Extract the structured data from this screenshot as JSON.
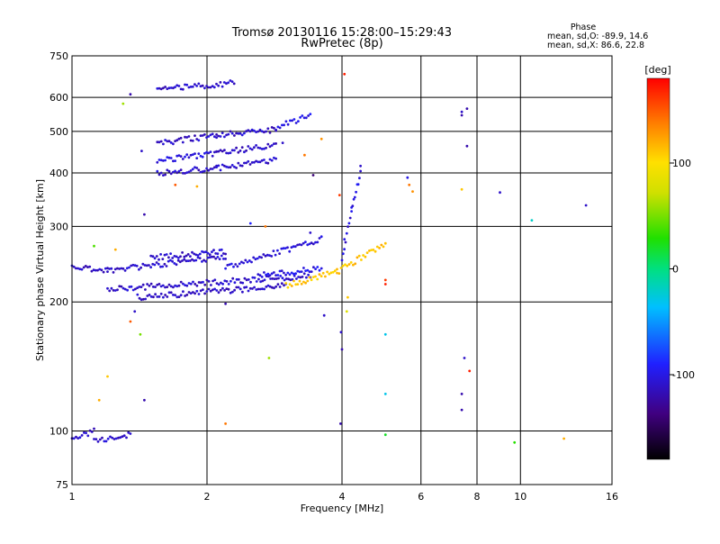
{
  "chart_data": {
    "type": "scatter",
    "title": "Tromsø 20130116 15:28:00–15:29:43",
    "subtitle": "RwPretec (8p)",
    "xlabel": "Frequency [MHz]",
    "ylabel": "Stationary phase Virtual Height [km]",
    "x_scale": "log",
    "y_scale": "log",
    "xlim": [
      1,
      16
    ],
    "ylim": [
      75,
      750
    ],
    "x_ticks": [
      1,
      2,
      4,
      6,
      8,
      10,
      16
    ],
    "y_ticks": [
      75,
      100,
      200,
      300,
      400,
      500,
      600,
      750
    ],
    "grid": true,
    "colorbar": {
      "label": "[deg]",
      "range": [
        -180,
        180
      ],
      "ticks": [
        100,
        0,
        -100
      ],
      "palette": [
        "#000000",
        "#400080",
        "#2020ff",
        "#00c0ff",
        "#00e080",
        "#20e000",
        "#d0e000",
        "#ffe000",
        "#ff8000",
        "#ff0000"
      ]
    },
    "phase_info": {
      "title": "Phase",
      "line1": "mean, sd,O: -89.9, 14.6",
      "line2": "mean, sd,X: 86.6, 22.8"
    },
    "traces": [
      {
        "x0": 1.55,
        "x1": 2.3,
        "y0": 628,
        "y1": 648,
        "phase": -110
      },
      {
        "x0": 1.55,
        "x1": 2.1,
        "y0": 468,
        "y1": 490,
        "phase": -110
      },
      {
        "x0": 1.55,
        "x1": 2.1,
        "y0": 428,
        "y1": 445,
        "phase": -105
      },
      {
        "x0": 1.55,
        "x1": 2.1,
        "y0": 400,
        "y1": 410,
        "phase": -110
      },
      {
        "x0": 2.1,
        "x1": 2.85,
        "y0": 490,
        "y1": 505,
        "phase": -110
      },
      {
        "x0": 2.1,
        "x1": 2.85,
        "y0": 445,
        "y1": 465,
        "phase": -110
      },
      {
        "x0": 2.1,
        "x1": 2.85,
        "y0": 410,
        "y1": 430,
        "phase": -110
      },
      {
        "x0": 2.85,
        "x1": 3.4,
        "y0": 510,
        "y1": 545,
        "phase": -100
      },
      {
        "x0": 1.0,
        "x1": 1.2,
        "y0": 240,
        "y1": 238,
        "phase": -110
      },
      {
        "x0": 1.2,
        "x1": 2.2,
        "y0": 237,
        "y1": 255,
        "phase": -110
      },
      {
        "x0": 1.5,
        "x1": 2.2,
        "y0": 254,
        "y1": 262,
        "phase": -110
      },
      {
        "x0": 2.2,
        "x1": 3.6,
        "y0": 240,
        "y1": 280,
        "phase": -105
      },
      {
        "x0": 2.6,
        "x1": 3.6,
        "y0": 230,
        "y1": 240,
        "phase": -100
      },
      {
        "x0": 1.2,
        "x1": 3.4,
        "y0": 214,
        "y1": 230,
        "phase": -110
      },
      {
        "x0": 1.4,
        "x1": 3.0,
        "y0": 205,
        "y1": 218,
        "phase": -112
      },
      {
        "x0": 3.0,
        "x1": 3.9,
        "y0": 218,
        "y1": 235,
        "phase": 110
      },
      {
        "x0": 3.9,
        "x1": 5.0,
        "y0": 235,
        "y1": 275,
        "phase": 112
      },
      {
        "x0": 4.0,
        "x1": 4.2,
        "y0": 250,
        "y1": 330,
        "phase": -105
      },
      {
        "x0": 4.2,
        "x1": 4.4,
        "y0": 330,
        "y1": 400,
        "phase": -100
      },
      {
        "x0": 1.0,
        "x1": 1.12,
        "y0": 96,
        "y1": 100,
        "phase": -110
      },
      {
        "x0": 1.12,
        "x1": 1.35,
        "y0": 95,
        "y1": 98,
        "phase": -110
      }
    ],
    "points": [
      {
        "x": 1.3,
        "y": 580,
        "phase": 60
      },
      {
        "x": 1.35,
        "y": 610,
        "phase": -120
      },
      {
        "x": 1.43,
        "y": 450,
        "phase": -110
      },
      {
        "x": 1.45,
        "y": 320,
        "phase": -120
      },
      {
        "x": 1.42,
        "y": 168,
        "phase": 50
      },
      {
        "x": 1.45,
        "y": 118,
        "phase": -120
      },
      {
        "x": 1.12,
        "y": 270,
        "phase": 40
      },
      {
        "x": 1.2,
        "y": 134,
        "phase": 110
      },
      {
        "x": 1.15,
        "y": 118,
        "phase": 120
      },
      {
        "x": 1.25,
        "y": 265,
        "phase": 120
      },
      {
        "x": 1.35,
        "y": 180,
        "phase": 150
      },
      {
        "x": 1.38,
        "y": 190,
        "phase": -110
      },
      {
        "x": 1.7,
        "y": 375,
        "phase": 150
      },
      {
        "x": 1.9,
        "y": 372,
        "phase": 120
      },
      {
        "x": 2.2,
        "y": 198,
        "phase": -120
      },
      {
        "x": 2.2,
        "y": 104,
        "phase": 140
      },
      {
        "x": 2.5,
        "y": 305,
        "phase": -90
      },
      {
        "x": 2.7,
        "y": 300,
        "phase": 140
      },
      {
        "x": 2.75,
        "y": 148,
        "phase": 60
      },
      {
        "x": 2.95,
        "y": 470,
        "phase": -110
      },
      {
        "x": 3.4,
        "y": 290,
        "phase": -110
      },
      {
        "x": 3.3,
        "y": 440,
        "phase": 140
      },
      {
        "x": 3.6,
        "y": 480,
        "phase": 130
      },
      {
        "x": 3.45,
        "y": 395,
        "phase": -140
      },
      {
        "x": 3.65,
        "y": 186,
        "phase": -110
      },
      {
        "x": 3.95,
        "y": 355,
        "phase": 160
      },
      {
        "x": 3.98,
        "y": 170,
        "phase": -110
      },
      {
        "x": 4.0,
        "y": 155,
        "phase": -120
      },
      {
        "x": 3.97,
        "y": 104,
        "phase": -120
      },
      {
        "x": 4.05,
        "y": 680,
        "phase": 170
      },
      {
        "x": 4.05,
        "y": 280,
        "phase": -100
      },
      {
        "x": 4.12,
        "y": 205,
        "phase": 110
      },
      {
        "x": 4.1,
        "y": 190,
        "phase": 80
      },
      {
        "x": 4.4,
        "y": 415,
        "phase": -110
      },
      {
        "x": 5.0,
        "y": 225,
        "phase": 160
      },
      {
        "x": 5.0,
        "y": 220,
        "phase": 170
      },
      {
        "x": 5.0,
        "y": 168,
        "phase": -30
      },
      {
        "x": 5.0,
        "y": 122,
        "phase": -30
      },
      {
        "x": 5.0,
        "y": 98,
        "phase": 20
      },
      {
        "x": 5.6,
        "y": 390,
        "phase": -100
      },
      {
        "x": 5.65,
        "y": 375,
        "phase": 140
      },
      {
        "x": 5.75,
        "y": 362,
        "phase": 130
      },
      {
        "x": 7.4,
        "y": 555,
        "phase": -110
      },
      {
        "x": 7.4,
        "y": 545,
        "phase": -120
      },
      {
        "x": 7.6,
        "y": 565,
        "phase": -120
      },
      {
        "x": 7.6,
        "y": 462,
        "phase": -120
      },
      {
        "x": 7.4,
        "y": 366,
        "phase": 110
      },
      {
        "x": 7.5,
        "y": 148,
        "phase": -110
      },
      {
        "x": 7.7,
        "y": 138,
        "phase": 170
      },
      {
        "x": 7.4,
        "y": 122,
        "phase": -120
      },
      {
        "x": 7.4,
        "y": 112,
        "phase": -120
      },
      {
        "x": 9.0,
        "y": 360,
        "phase": -110
      },
      {
        "x": 9.7,
        "y": 94,
        "phase": 30
      },
      {
        "x": 10.6,
        "y": 310,
        "phase": -20
      },
      {
        "x": 12.5,
        "y": 96,
        "phase": 120
      },
      {
        "x": 14.0,
        "y": 336,
        "phase": -110
      }
    ]
  }
}
